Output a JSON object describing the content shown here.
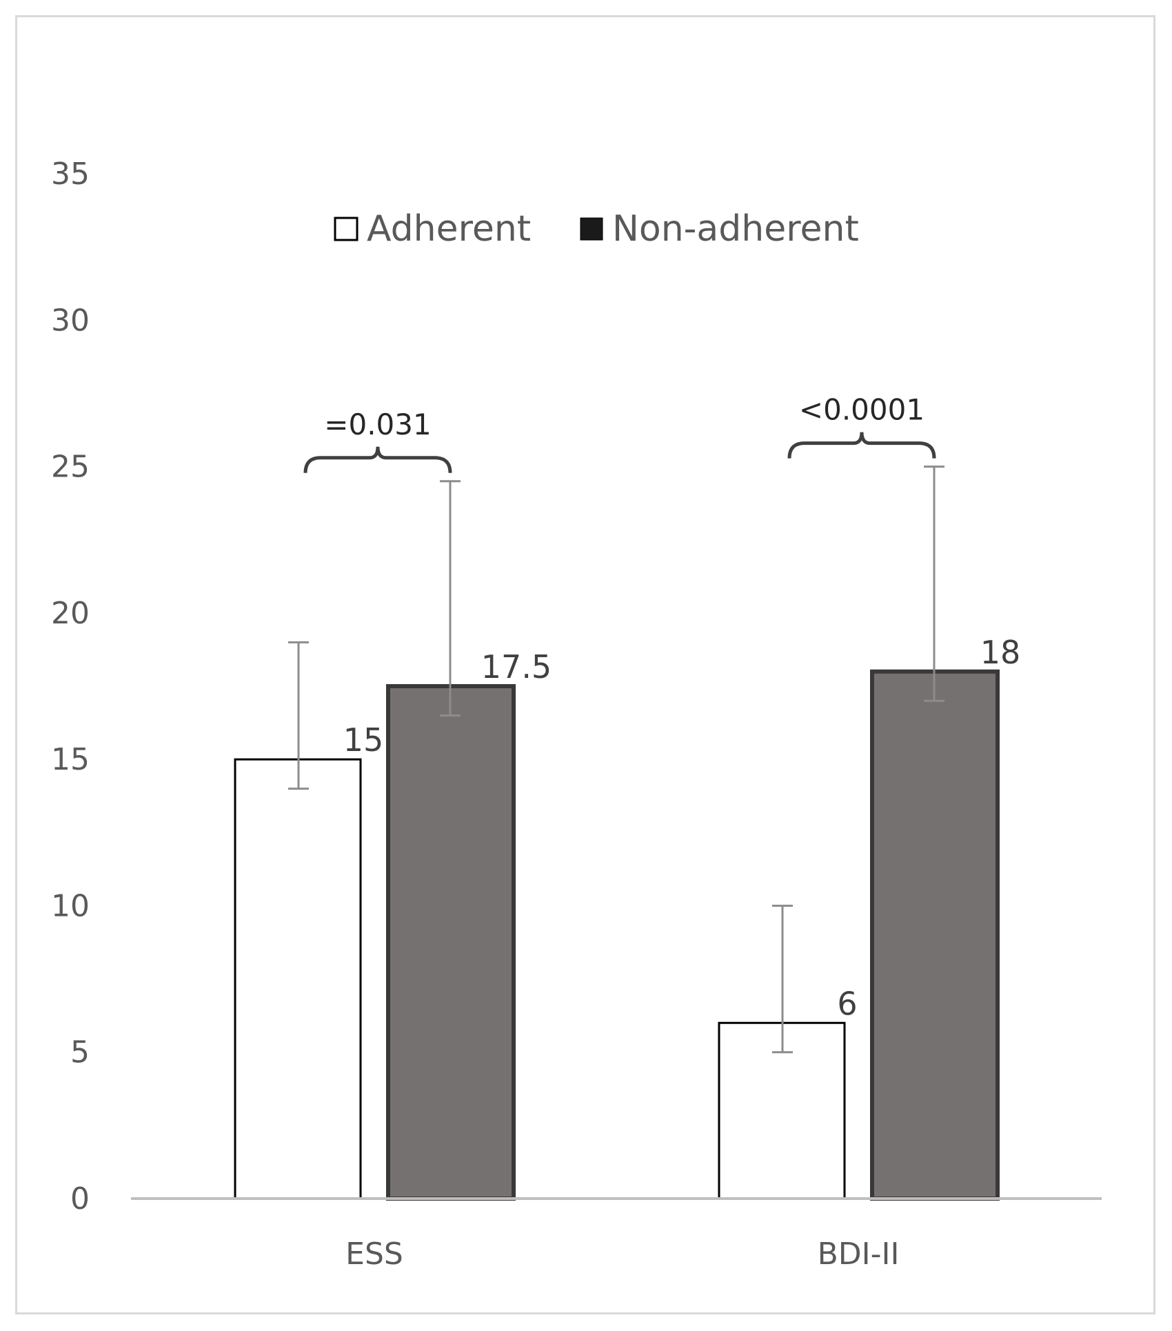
{
  "chart_data": {
    "type": "bar",
    "title": "",
    "xlabel": "",
    "ylabel": "",
    "categories": [
      "ESS",
      "BDI-II"
    ],
    "series": [
      {
        "name": "Adherent",
        "values": [
          15,
          6
        ],
        "error_low": [
          14,
          5
        ],
        "error_high": [
          19,
          10
        ],
        "color": "#ffffff",
        "stroke": "#000000"
      },
      {
        "name": "Non-adherent",
        "values": [
          17.5,
          18
        ],
        "error_low": [
          16.5,
          17
        ],
        "error_high": [
          24.5,
          25
        ],
        "color": "#767171",
        "stroke": "#3a3838"
      }
    ],
    "data_labels": [
      [
        "15",
        "6"
      ],
      [
        "17.5",
        "18"
      ]
    ],
    "ylim": [
      0,
      35
    ],
    "yticks": [
      0,
      5,
      10,
      15,
      20,
      25,
      30,
      35
    ],
    "grid": false,
    "legend": {
      "position": "top",
      "swatch_colors": [
        "#ffffff",
        "#1a1a1a"
      ]
    },
    "annotations": [
      {
        "category": "ESS",
        "text": "=0.031"
      },
      {
        "category": "BDI-II",
        "text": "<0.0001"
      }
    ]
  }
}
